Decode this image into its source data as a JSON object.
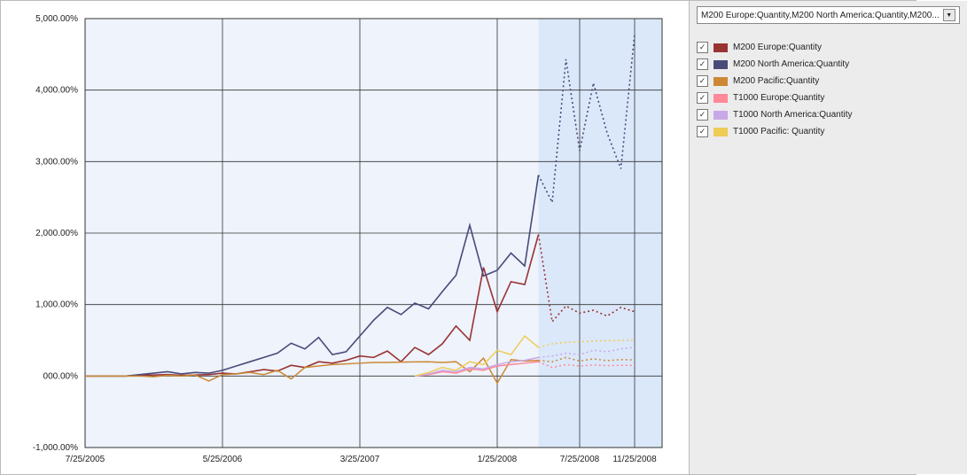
{
  "chart": {
    "type": "line",
    "background_color": "#ffffff",
    "plot_background_color": "#eef3fc",
    "forecast_band_color": "#dbe8fa",
    "grid_color": "#333333",
    "axis_color": "#333333",
    "font_family": "Verdana",
    "tick_fontsize": 10,
    "y_axis": {
      "min": -1000,
      "max": 5000,
      "tick_step": 1000,
      "tick_labels": [
        "-1,000.00%",
        "000.00%",
        "1,000.00%",
        "2,000.00%",
        "3,000.00%",
        "4,000.00%",
        "5,000.00%"
      ]
    },
    "x_axis": {
      "min": 0,
      "max": 42,
      "tick_positions": [
        0,
        10,
        20,
        30,
        36,
        40
      ],
      "tick_labels": [
        "7/25/2005",
        "5/25/2006",
        "3/25/2007",
        "1/25/2008",
        "7/25/2008",
        "11/25/2008"
      ]
    },
    "forecast_start_x": 33,
    "series": [
      {
        "id": "m200_europe",
        "label": "M200 Europe:Quantity",
        "color": "#993333",
        "line_width": 1.6,
        "solid": [
          [
            0,
            0
          ],
          [
            1,
            0
          ],
          [
            2,
            0
          ],
          [
            3,
            0
          ],
          [
            4,
            10
          ],
          [
            5,
            15
          ],
          [
            6,
            20
          ],
          [
            7,
            10
          ],
          [
            8,
            15
          ],
          [
            9,
            20
          ],
          [
            10,
            40
          ],
          [
            11,
            30
          ],
          [
            12,
            60
          ],
          [
            13,
            90
          ],
          [
            14,
            70
          ],
          [
            15,
            150
          ],
          [
            16,
            120
          ],
          [
            17,
            200
          ],
          [
            18,
            180
          ],
          [
            19,
            220
          ],
          [
            20,
            280
          ],
          [
            21,
            260
          ],
          [
            22,
            350
          ],
          [
            23,
            200
          ],
          [
            24,
            400
          ],
          [
            25,
            300
          ],
          [
            26,
            450
          ],
          [
            27,
            700
          ],
          [
            28,
            500
          ],
          [
            29,
            1520
          ],
          [
            30,
            900
          ],
          [
            31,
            1320
          ],
          [
            32,
            1280
          ],
          [
            33,
            1980
          ]
        ],
        "dashed": [
          [
            33,
            1980
          ],
          [
            34,
            760
          ],
          [
            35,
            980
          ],
          [
            36,
            880
          ],
          [
            37,
            920
          ],
          [
            38,
            840
          ],
          [
            39,
            960
          ],
          [
            40,
            900
          ]
        ]
      },
      {
        "id": "m200_north_america",
        "label": "M200 North America:Quantity",
        "color": "#4a4a7a",
        "line_width": 1.6,
        "solid": [
          [
            0,
            0
          ],
          [
            1,
            0
          ],
          [
            2,
            0
          ],
          [
            3,
            0
          ],
          [
            4,
            20
          ],
          [
            5,
            40
          ],
          [
            6,
            60
          ],
          [
            7,
            30
          ],
          [
            8,
            50
          ],
          [
            9,
            40
          ],
          [
            10,
            80
          ],
          [
            11,
            140
          ],
          [
            12,
            200
          ],
          [
            13,
            260
          ],
          [
            14,
            320
          ],
          [
            15,
            460
          ],
          [
            16,
            380
          ],
          [
            17,
            540
          ],
          [
            18,
            300
          ],
          [
            19,
            340
          ],
          [
            20,
            560
          ],
          [
            21,
            780
          ],
          [
            22,
            960
          ],
          [
            23,
            860
          ],
          [
            24,
            1020
          ],
          [
            25,
            940
          ],
          [
            26,
            1180
          ],
          [
            27,
            1410
          ],
          [
            28,
            2110
          ],
          [
            29,
            1400
          ],
          [
            30,
            1480
          ],
          [
            31,
            1720
          ],
          [
            32,
            1540
          ],
          [
            33,
            2810
          ]
        ],
        "dashed": [
          [
            33,
            2810
          ],
          [
            34,
            2430
          ],
          [
            35,
            4430
          ],
          [
            36,
            3150
          ],
          [
            37,
            4100
          ],
          [
            38,
            3400
          ],
          [
            39,
            2900
          ],
          [
            40,
            4780
          ]
        ]
      },
      {
        "id": "m200_pacific",
        "label": "M200 Pacific:Quantity",
        "color": "#cc8833",
        "line_width": 1.5,
        "solid": [
          [
            0,
            0
          ],
          [
            1,
            0
          ],
          [
            2,
            0
          ],
          [
            3,
            0
          ],
          [
            4,
            0
          ],
          [
            5,
            -10
          ],
          [
            6,
            10
          ],
          [
            7,
            0
          ],
          [
            8,
            15
          ],
          [
            9,
            -70
          ],
          [
            10,
            20
          ],
          [
            11,
            30
          ],
          [
            12,
            50
          ],
          [
            13,
            20
          ],
          [
            14,
            80
          ],
          [
            15,
            -40
          ],
          [
            16,
            120
          ],
          [
            17,
            140
          ],
          [
            18,
            160
          ],
          [
            19,
            170
          ],
          [
            20,
            180
          ],
          [
            21,
            190
          ],
          [
            22,
            190
          ],
          [
            23,
            195
          ],
          [
            24,
            198
          ],
          [
            25,
            200
          ],
          [
            26,
            190
          ],
          [
            27,
            200
          ],
          [
            28,
            60
          ],
          [
            29,
            250
          ],
          [
            30,
            -100
          ],
          [
            31,
            230
          ],
          [
            32,
            210
          ],
          [
            33,
            220
          ]
        ],
        "dashed": [
          [
            33,
            220
          ],
          [
            34,
            200
          ],
          [
            35,
            260
          ],
          [
            36,
            210
          ],
          [
            37,
            240
          ],
          [
            38,
            215
          ],
          [
            39,
            230
          ],
          [
            40,
            225
          ]
        ]
      },
      {
        "id": "t1000_europe",
        "label": "T1000 Europe:Quantity",
        "color": "#ff8899",
        "line_width": 1.5,
        "solid": [
          [
            24,
            0
          ],
          [
            25,
            20
          ],
          [
            26,
            60
          ],
          [
            27,
            40
          ],
          [
            28,
            100
          ],
          [
            29,
            80
          ],
          [
            30,
            140
          ],
          [
            31,
            160
          ],
          [
            32,
            180
          ],
          [
            33,
            200
          ]
        ],
        "dashed": [
          [
            33,
            200
          ],
          [
            34,
            120
          ],
          [
            35,
            160
          ],
          [
            36,
            140
          ],
          [
            37,
            155
          ],
          [
            38,
            145
          ],
          [
            39,
            150
          ],
          [
            40,
            148
          ]
        ]
      },
      {
        "id": "t1000_north_america",
        "label": "T1000 North America:Quantity",
        "color": "#c8a8e8",
        "line_width": 1.5,
        "solid": [
          [
            24,
            0
          ],
          [
            25,
            30
          ],
          [
            26,
            80
          ],
          [
            27,
            60
          ],
          [
            28,
            120
          ],
          [
            29,
            100
          ],
          [
            30,
            160
          ],
          [
            31,
            200
          ],
          [
            32,
            220
          ],
          [
            33,
            260
          ]
        ],
        "dashed": [
          [
            33,
            260
          ],
          [
            34,
            280
          ],
          [
            35,
            320
          ],
          [
            36,
            300
          ],
          [
            37,
            360
          ],
          [
            38,
            340
          ],
          [
            39,
            380
          ],
          [
            40,
            400
          ]
        ]
      },
      {
        "id": "t1000_pacific",
        "label": "T1000 Pacific: Quantity",
        "color": "#eecc55",
        "line_width": 1.5,
        "solid": [
          [
            24,
            0
          ],
          [
            25,
            50
          ],
          [
            26,
            120
          ],
          [
            27,
            80
          ],
          [
            28,
            200
          ],
          [
            29,
            160
          ],
          [
            30,
            360
          ],
          [
            31,
            300
          ],
          [
            32,
            560
          ],
          [
            33,
            400
          ]
        ],
        "dashed": [
          [
            33,
            400
          ],
          [
            34,
            450
          ],
          [
            35,
            470
          ],
          [
            36,
            480
          ],
          [
            37,
            490
          ],
          [
            38,
            495
          ],
          [
            39,
            498
          ],
          [
            40,
            500
          ]
        ]
      }
    ]
  },
  "dropdown": {
    "text": "M200 Europe:Quantity,M200 North America:Quantity,M200..."
  },
  "legend": {
    "items": [
      {
        "checked": true,
        "color": "#993333",
        "label": "M200 Europe:Quantity"
      },
      {
        "checked": true,
        "color": "#4a4a7a",
        "label": "M200 North America:Quantity"
      },
      {
        "checked": true,
        "color": "#cc8833",
        "label": "M200 Pacific:Quantity"
      },
      {
        "checked": true,
        "color": "#ff8899",
        "label": "T1000 Europe:Quantity"
      },
      {
        "checked": true,
        "color": "#c8a8e8",
        "label": "T1000 North America:Quantity"
      },
      {
        "checked": true,
        "color": "#eecc55",
        "label": "T1000 Pacific: Quantity"
      }
    ]
  }
}
